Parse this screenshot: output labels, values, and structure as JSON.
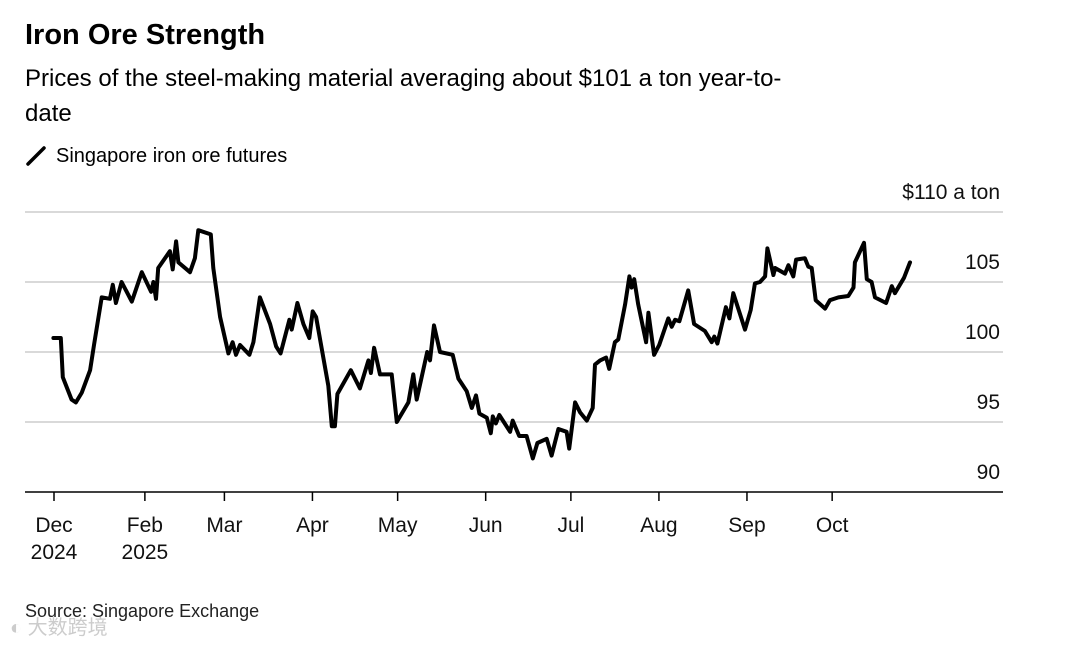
{
  "chart_data": {
    "type": "line",
    "title": "Iron Ore Strength",
    "subtitle_line1": "Prices of the steel-making material averaging about $101 a ton year-to-",
    "subtitle_line2": "date",
    "legend": [
      "Singapore iron ore futures"
    ],
    "legend_placement": "top-left",
    "xlabel": "",
    "ylabel": "$110 a ton",
    "x_unit": "days since Dec tick",
    "ylim": [
      90,
      110
    ],
    "grid": true,
    "y_ticks": [
      {
        "value": 110,
        "label": "$110 a ton"
      },
      {
        "value": 105,
        "label": "105"
      },
      {
        "value": 100,
        "label": "100"
      },
      {
        "value": 95,
        "label": "95"
      },
      {
        "value": 90,
        "label": "90"
      }
    ],
    "x_ticks": [
      {
        "value": 0,
        "label": "Dec",
        "sublabel": "2024"
      },
      {
        "value": 32,
        "label": "Feb",
        "sublabel": "2025"
      },
      {
        "value": 60,
        "label": "Mar"
      },
      {
        "value": 91,
        "label": "Apr"
      },
      {
        "value": 121,
        "label": "May"
      },
      {
        "value": 152,
        "label": "Jun"
      },
      {
        "value": 182,
        "label": "Jul"
      },
      {
        "value": 213,
        "label": "Aug"
      },
      {
        "value": 244,
        "label": "Sep"
      },
      {
        "value": 274,
        "label": "Oct"
      }
    ],
    "series": [
      {
        "name": "Singapore iron ore futures",
        "color": "#000000",
        "x": [
          -0.2,
          2.4,
          3.1,
          6.2,
          7.7,
          9.8,
          12.7,
          14.1,
          16.8,
          19.7,
          20.7,
          21.8,
          23.8,
          27.4,
          30.9,
          34.2,
          35.0,
          35.9,
          36.7,
          40.8,
          41.8,
          43.0,
          43.8,
          47.9,
          49.6,
          50.8,
          55.2,
          56.1,
          58.5,
          61.4,
          62.9,
          64.1,
          65.5,
          68.8,
          70.2,
          72.5,
          76.1,
          78.2,
          79.8,
          82.9,
          83.7,
          85.7,
          87.8,
          89.9,
          91.1,
          92.3,
          96.6,
          97.8,
          98.9,
          99.8,
          104.5,
          107.7,
          110.7,
          111.6,
          112.7,
          114.8,
          118.9,
          120.7,
          124.8,
          126.5,
          127.7,
          131.4,
          132.4,
          133.8,
          135.9,
          140.4,
          142.4,
          145.3,
          147.1,
          148.6,
          149.8,
          152.4,
          153.8,
          154.5,
          155.6,
          156.8,
          160.6,
          161.5,
          163.8,
          166.4,
          168.6,
          170.2,
          173.5,
          175.2,
          177.6,
          180.5,
          181.4,
          183.5,
          185.2,
          187.6,
          189.7,
          190.5,
          192.3,
          194.4,
          195.5,
          197.5,
          198.7,
          201.1,
          202.6,
          203.4,
          204.3,
          205.7,
          208.5,
          209.3,
          211.3,
          213.1,
          216.3,
          217.5,
          218.7,
          220.2,
          223.3,
          225.4,
          229.2,
          231.6,
          232.5,
          233.6,
          236.6,
          237.8,
          239.2,
          243.3,
          245.3,
          246.8,
          248.6,
          250.4,
          251.2,
          253.3,
          253.9,
          257.4,
          258.6,
          260.3,
          261.3,
          264.4,
          265.6,
          266.8,
          268.2,
          271.5,
          273.2,
          276.2,
          279.7,
          281.5,
          282.0,
          285.2,
          286.2,
          287.9,
          289.1,
          293.0,
          295.0,
          296.1,
          299.3,
          301.4
        ],
        "y": [
          101.0,
          101.0,
          98.2,
          96.6,
          96.4,
          97.1,
          98.7,
          100.5,
          103.9,
          103.8,
          104.8,
          103.5,
          105.0,
          103.6,
          105.7,
          104.3,
          105.0,
          103.8,
          106.0,
          107.2,
          105.9,
          107.9,
          106.4,
          105.7,
          106.7,
          108.7,
          108.4,
          106.0,
          102.5,
          99.9,
          100.7,
          99.8,
          100.5,
          99.8,
          100.7,
          103.9,
          102.0,
          100.4,
          99.9,
          102.3,
          101.6,
          103.5,
          102.0,
          101.0,
          102.9,
          102.5,
          97.6,
          94.7,
          94.7,
          97.0,
          98.7,
          97.4,
          99.4,
          98.5,
          100.3,
          98.4,
          98.4,
          95.0,
          96.4,
          98.4,
          96.6,
          100.0,
          99.4,
          101.9,
          100.0,
          99.8,
          98.1,
          97.2,
          96.0,
          96.9,
          95.6,
          95.3,
          94.2,
          95.4,
          94.9,
          95.5,
          94.3,
          95.1,
          94.0,
          94.0,
          92.4,
          93.5,
          93.8,
          92.6,
          94.5,
          94.3,
          93.1,
          96.4,
          95.7,
          95.1,
          96.0,
          99.1,
          99.4,
          99.6,
          98.8,
          100.7,
          100.9,
          103.4,
          105.4,
          104.6,
          105.2,
          103.4,
          100.7,
          102.8,
          99.8,
          100.5,
          102.4,
          101.8,
          102.3,
          102.2,
          104.4,
          102.0,
          101.5,
          100.7,
          101.1,
          100.6,
          103.2,
          102.4,
          104.2,
          101.6,
          103.0,
          104.9,
          105.0,
          105.4,
          107.4,
          105.5,
          106.0,
          105.6,
          106.2,
          105.4,
          106.6,
          106.7,
          106.1,
          106.0,
          103.7,
          103.1,
          103.7,
          103.9,
          104.0,
          104.6,
          106.4,
          107.8,
          105.2,
          105.0,
          103.9,
          103.5,
          104.7,
          104.2,
          105.3,
          106.4
        ]
      }
    ],
    "source": "Source: Singapore Exchange"
  },
  "watermark": "大数跨境"
}
